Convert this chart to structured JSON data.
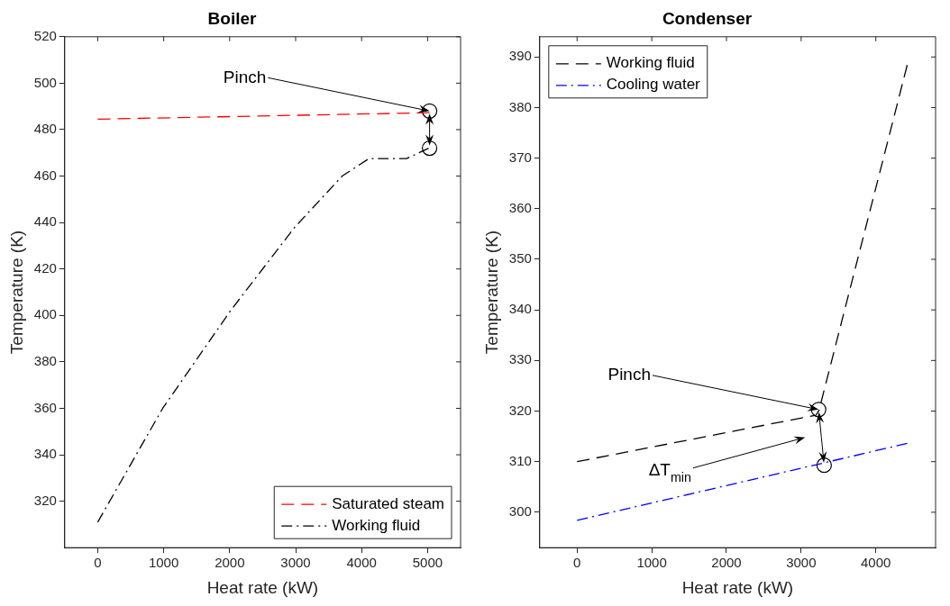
{
  "chart_data": [
    {
      "type": "line",
      "title": "Boiler",
      "xlabel": "Heat rate (kW)",
      "ylabel": "Temperature (K)",
      "xlim": [
        -500,
        5500
      ],
      "xticks": [
        0,
        1000,
        2000,
        3000,
        4000,
        5000
      ],
      "ylim": [
        300,
        520
      ],
      "yticks": [
        320,
        340,
        360,
        380,
        400,
        420,
        440,
        460,
        480,
        500,
        520
      ],
      "grid": false,
      "legend": "bottom right",
      "series": [
        {
          "name": "Saturated steam",
          "color": "#ff0000",
          "line_style": "dashed",
          "x": [
            0,
            5030
          ],
          "values": [
            484.5,
            487.3
          ]
        },
        {
          "name": "Working fluid",
          "color": "#000000",
          "line_style": "dashdot",
          "x": [
            0,
            985,
            2012,
            2987,
            3705,
            4110,
            4680,
            5015
          ],
          "values": [
            311,
            360,
            402,
            438,
            460,
            467.5,
            467.5,
            472
          ]
        },
        {
          "type": "scatter",
          "color": "#000000",
          "marker": "circle",
          "x": [
            5030,
            5030
          ],
          "values": [
            488,
            472
          ]
        }
      ],
      "annotations": [
        {
          "text": "Pinch",
          "x": 5030,
          "y": 488
        }
      ]
    },
    {
      "type": "line",
      "title": "Condenser",
      "xlabel": "Heat rate (kW)",
      "ylabel": "Temperature (K)",
      "xlim": [
        -500,
        4800
      ],
      "xticks": [
        0,
        1000,
        2000,
        3000,
        4000
      ],
      "ylim": [
        293,
        394
      ],
      "yticks": [
        300,
        310,
        320,
        330,
        340,
        350,
        360,
        370,
        380,
        390
      ],
      "grid": false,
      "legend": "top left",
      "series": [
        {
          "name": "Working fluid",
          "color": "#000000",
          "line_style": "dashed",
          "x": [
            0,
            3200,
            3240,
            4420
          ],
          "values": [
            310,
            319.2,
            320.2,
            388.4
          ]
        },
        {
          "name": "Cooling water",
          "color": "#0000ff",
          "line_style": "dashdot",
          "x": [
            0,
            4420
          ],
          "values": [
            298.4,
            313.6
          ]
        },
        {
          "type": "scatter",
          "color": "#000000",
          "marker": "circle",
          "x": [
            3234,
            3308
          ],
          "values": [
            320.3,
            309.3
          ]
        }
      ],
      "annotations": [
        {
          "text": "Pinch",
          "x": 3234,
          "y": 320.3
        },
        "ΔT$_{min}$"
      ]
    }
  ]
}
